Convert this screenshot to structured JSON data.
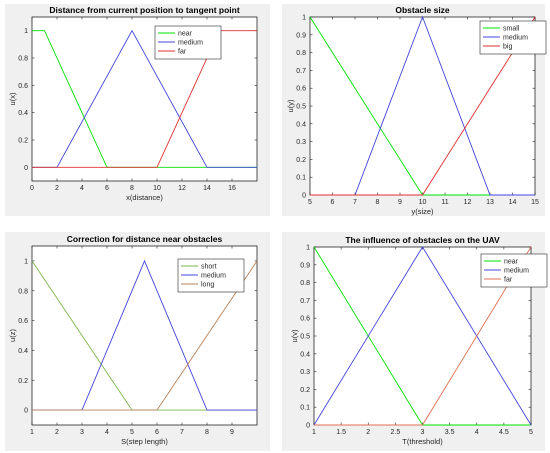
{
  "chart_data": [
    {
      "type": "line",
      "title": "Distance from current position to tangent point",
      "xlabel": "x(distance)",
      "ylabel": "u(x)",
      "xlim": [
        0,
        18
      ],
      "ylim": [
        -0.1,
        1.1
      ],
      "xticks": [
        0,
        2,
        4,
        6,
        8,
        10,
        12,
        14,
        16
      ],
      "yticks": [
        0,
        0.2,
        0.4,
        0.6,
        0.8,
        1
      ],
      "ytick_labels": [
        "0",
        "0.2",
        "0.4",
        "0.6",
        "0.8",
        "1"
      ],
      "legend_position": "top-right",
      "series": [
        {
          "name": "near",
          "color": "#00e000",
          "x": [
            0,
            1,
            6,
            18
          ],
          "y": [
            1,
            1,
            0,
            0
          ]
        },
        {
          "name": "medium",
          "color": "#4444dd",
          "x": [
            0,
            2,
            8,
            14,
            18
          ],
          "y": [
            0,
            0,
            1,
            0,
            0
          ]
        },
        {
          "name": "far",
          "color": "#e03030",
          "x": [
            0,
            10,
            15,
            18
          ],
          "y": [
            0,
            0,
            1,
            1
          ]
        }
      ]
    },
    {
      "type": "line",
      "title": "Obstacle size",
      "xlabel": "y(size)",
      "ylabel": "u(y)",
      "xlim": [
        5,
        15
      ],
      "ylim": [
        0,
        1
      ],
      "xticks": [
        5,
        6,
        7,
        8,
        9,
        10,
        11,
        12,
        13,
        14,
        15
      ],
      "yticks": [
        0,
        0.1,
        0.2,
        0.3,
        0.4,
        0.5,
        0.6,
        0.7,
        0.8,
        0.9,
        1
      ],
      "ytick_labels": [
        "0",
        "0.1",
        "0.2",
        "0.3",
        "0.4",
        "0.5",
        "0.6",
        "0.7",
        "0.8",
        "0.9",
        "1"
      ],
      "legend_position": "top-right",
      "series": [
        {
          "name": "small",
          "color": "#00e000",
          "x": [
            5,
            10,
            15
          ],
          "y": [
            1,
            0,
            0
          ]
        },
        {
          "name": "medium",
          "color": "#4444dd",
          "x": [
            5,
            7,
            10,
            13,
            15
          ],
          "y": [
            0,
            0,
            1,
            0,
            0
          ]
        },
        {
          "name": "big",
          "color": "#e03030",
          "x": [
            5,
            10,
            15
          ],
          "y": [
            0,
            0,
            1
          ]
        }
      ]
    },
    {
      "type": "line",
      "title": "Correction for distance near obstacles",
      "xlabel": "S(step length)",
      "ylabel": "u(z)",
      "xlim": [
        1,
        10
      ],
      "ylim": [
        -0.1,
        1.1
      ],
      "xticks": [
        1,
        2,
        3,
        4,
        5,
        6,
        7,
        8,
        9
      ],
      "yticks": [
        0,
        0.2,
        0.4,
        0.6,
        0.8,
        1
      ],
      "ytick_labels": [
        "0",
        "0.2",
        "0.4",
        "0.6",
        "0.8",
        "1"
      ],
      "legend_position": "top-right",
      "series": [
        {
          "name": "short",
          "color": "#7ab648",
          "x": [
            1,
            5,
            10
          ],
          "y": [
            1,
            0,
            0
          ]
        },
        {
          "name": "medium",
          "color": "#4444dd",
          "x": [
            1,
            3,
            5.5,
            8,
            10
          ],
          "y": [
            0,
            0,
            1,
            0,
            0
          ]
        },
        {
          "name": "long",
          "color": "#b8805a",
          "x": [
            1,
            6,
            10
          ],
          "y": [
            0,
            0,
            1
          ]
        }
      ]
    },
    {
      "type": "line",
      "title": "The influence of obstacles on the UAV",
      "xlabel": "T(threshold)",
      "ylabel": "u(v)",
      "xlim": [
        1,
        5
      ],
      "ylim": [
        0,
        1
      ],
      "xticks": [
        1,
        1.5,
        2,
        2.5,
        3,
        3.5,
        4,
        4.5,
        5
      ],
      "yticks": [
        0,
        0.1,
        0.2,
        0.3,
        0.4,
        0.5,
        0.6,
        0.7,
        0.8,
        0.9,
        1
      ],
      "ytick_labels": [
        "0",
        "0.1",
        "0.2",
        "0.3",
        "0.4",
        "0.5",
        "0.6",
        "0.7",
        "0.8",
        "0.9",
        "1"
      ],
      "legend_position": "top-right",
      "series": [
        {
          "name": "near",
          "color": "#00e000",
          "x": [
            1,
            3,
            5
          ],
          "y": [
            1,
            0,
            0
          ]
        },
        {
          "name": "medium",
          "color": "#4444dd",
          "x": [
            1,
            3,
            5
          ],
          "y": [
            0,
            1,
            0
          ]
        },
        {
          "name": "far",
          "color": "#e07050",
          "x": [
            1,
            3,
            5
          ],
          "y": [
            0,
            0,
            1
          ]
        }
      ]
    }
  ]
}
